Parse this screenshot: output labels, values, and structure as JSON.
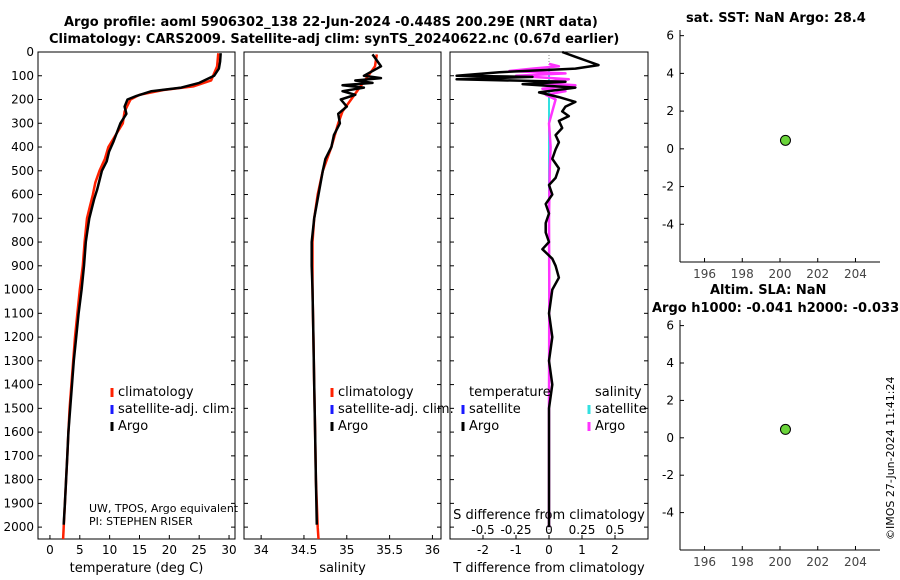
{
  "header": {
    "title_line1": "Argo profile: aoml 5906302_138 22-Jun-2024 -0.448S 200.29E (NRT data)",
    "title_line2": "Climatology: CARS2009. Satellite-adj clim: synTS_20240622.nc (0.67d earlier)",
    "sst_title": "sat. SST: NaN Argo: 28.4",
    "sla_title1": "Altim. SLA: NaN",
    "sla_title2": "Argo h1000: -0.041 h2000: -0.033",
    "stamp": "©IMOS 27-Jun-2024 11:41:24"
  },
  "colors": {
    "argo": "#000000",
    "climatology": "#ff2000",
    "satellite_adj": "#1a1aff",
    "s_satellite": "#33e0e0",
    "s_argo": "#ff33ff",
    "marker": "#6ad43a"
  },
  "info": {
    "line1": "UW, TPOS, Argo equivalent",
    "line2": "PI: STEPHEN RISER"
  },
  "legend": {
    "climatology": "climatology",
    "satellite_adj": "satellite-adj. clim.",
    "argo": "Argo"
  },
  "diff_legend": {
    "temperature": "temperature",
    "salinity": "salinity",
    "satellite": "satellite",
    "argo": "Argo"
  },
  "chart_data": [
    {
      "type": "line",
      "id": "temperature",
      "xlabel": "temperature (deg C)",
      "ylabel": "",
      "xlim": [
        -2,
        31
      ],
      "ylim": [
        0,
        2050
      ],
      "xticks": [
        0,
        5,
        10,
        15,
        20,
        25,
        30
      ],
      "yticks": [
        0,
        100,
        200,
        300,
        400,
        500,
        600,
        700,
        800,
        900,
        1000,
        1100,
        1200,
        1300,
        1400,
        1500,
        1600,
        1700,
        1800,
        1900,
        2000
      ],
      "series": [
        {
          "name": "climatology",
          "points": [
            [
              28.2,
              5
            ],
            [
              28.0,
              60
            ],
            [
              27.0,
              120
            ],
            [
              24,
              145
            ],
            [
              19,
              160
            ],
            [
              15,
              180
            ],
            [
              13.5,
              200
            ],
            [
              12.5,
              250
            ],
            [
              12.2,
              300
            ],
            [
              11,
              350
            ],
            [
              9.8,
              400
            ],
            [
              9.2,
              450
            ],
            [
              8.3,
              500
            ],
            [
              7.6,
              550
            ],
            [
              7.2,
              600
            ],
            [
              6.7,
              650
            ],
            [
              6.2,
              700
            ],
            [
              5.8,
              800
            ],
            [
              5.5,
              900
            ],
            [
              5.0,
              1000
            ],
            [
              4.6,
              1100
            ],
            [
              4.2,
              1200
            ],
            [
              3.9,
              1300
            ],
            [
              3.6,
              1400
            ],
            [
              3.3,
              1500
            ],
            [
              3.1,
              1600
            ],
            [
              2.9,
              1700
            ],
            [
              2.7,
              1800
            ],
            [
              2.5,
              1900
            ],
            [
              2.3,
              2000
            ],
            [
              2.2,
              2050
            ]
          ]
        },
        {
          "name": "Argo",
          "points": [
            [
              28.6,
              5
            ],
            [
              28.5,
              40
            ],
            [
              28.3,
              70
            ],
            [
              27.5,
              100
            ],
            [
              25,
              130
            ],
            [
              22,
              150
            ],
            [
              17,
              165
            ],
            [
              14.5,
              185
            ],
            [
              13,
              200
            ],
            [
              12.5,
              230
            ],
            [
              12.8,
              260
            ],
            [
              11.8,
              300
            ],
            [
              11.2,
              340
            ],
            [
              10.6,
              380
            ],
            [
              9.9,
              420
            ],
            [
              9.5,
              460
            ],
            [
              8.7,
              500
            ],
            [
              8.3,
              540
            ],
            [
              7.9,
              580
            ],
            [
              7.4,
              620
            ],
            [
              7.0,
              660
            ],
            [
              6.6,
              700
            ],
            [
              6.3,
              750
            ],
            [
              6.0,
              800
            ],
            [
              5.7,
              900
            ],
            [
              5.3,
              1000
            ],
            [
              4.8,
              1100
            ],
            [
              4.4,
              1200
            ],
            [
              4.0,
              1300
            ],
            [
              3.7,
              1400
            ],
            [
              3.4,
              1500
            ],
            [
              3.1,
              1600
            ],
            [
              2.9,
              1700
            ],
            [
              2.7,
              1800
            ],
            [
              2.5,
              1900
            ],
            [
              2.3,
              1990
            ]
          ]
        }
      ]
    },
    {
      "type": "line",
      "id": "salinity",
      "xlabel": "salinity",
      "ylabel": "",
      "xlim": [
        33.8,
        36.1
      ],
      "ylim": [
        0,
        2050
      ],
      "xticks": [
        34,
        34.5,
        35,
        35.5,
        36
      ],
      "series": [
        {
          "name": "climatology",
          "points": [
            [
              35.35,
              10
            ],
            [
              35.33,
              60
            ],
            [
              35.25,
              100
            ],
            [
              35.15,
              150
            ],
            [
              35.05,
              200
            ],
            [
              34.95,
              250
            ],
            [
              34.9,
              300
            ],
            [
              34.82,
              400
            ],
            [
              34.72,
              500
            ],
            [
              34.66,
              600
            ],
            [
              34.62,
              700
            ],
            [
              34.6,
              800
            ],
            [
              34.6,
              900
            ],
            [
              34.6,
              1000
            ],
            [
              34.61,
              1200
            ],
            [
              34.62,
              1400
            ],
            [
              34.63,
              1600
            ],
            [
              34.64,
              1800
            ],
            [
              34.66,
              2000
            ],
            [
              34.67,
              2050
            ]
          ]
        },
        {
          "name": "Argo",
          "points": [
            [
              35.3,
              10
            ],
            [
              35.4,
              60
            ],
            [
              35.2,
              100
            ],
            [
              35.4,
              110
            ],
            [
              35.1,
              120
            ],
            [
              35.3,
              130
            ],
            [
              34.95,
              140
            ],
            [
              35.2,
              150
            ],
            [
              34.95,
              165
            ],
            [
              35.1,
              180
            ],
            [
              34.93,
              200
            ],
            [
              35.0,
              230
            ],
            [
              34.9,
              260
            ],
            [
              34.92,
              300
            ],
            [
              34.85,
              350
            ],
            [
              34.82,
              400
            ],
            [
              34.75,
              450
            ],
            [
              34.72,
              500
            ],
            [
              34.67,
              600
            ],
            [
              34.62,
              700
            ],
            [
              34.59,
              800
            ],
            [
              34.59,
              900
            ],
            [
              34.6,
              1000
            ],
            [
              34.61,
              1200
            ],
            [
              34.62,
              1400
            ],
            [
              34.63,
              1600
            ],
            [
              34.64,
              1800
            ],
            [
              34.65,
              1990
            ]
          ]
        }
      ]
    },
    {
      "type": "line",
      "id": "difference",
      "xlabel": "T difference from climatology",
      "xlabel_top": "S difference from climatology",
      "xlim": [
        -3,
        3
      ],
      "ylim": [
        0,
        2050
      ],
      "xticks": [
        -2,
        -1,
        0,
        1,
        2
      ],
      "s_ticks": [
        {
          "label": "-0.5",
          "t": -2
        },
        {
          "label": "-0.25",
          "t": -1
        },
        {
          "label": "0",
          "t": 0
        },
        {
          "label": "0.25",
          "t": 1
        },
        {
          "label": "0.5",
          "t": 2
        }
      ],
      "series": [
        {
          "name": "T Argo",
          "points": [
            [
              0.4,
              0
            ],
            [
              0.8,
              20
            ],
            [
              1.2,
              40
            ],
            [
              1.5,
              55
            ],
            [
              0.8,
              70
            ],
            [
              -1.5,
              85
            ],
            [
              -2.8,
              100
            ],
            [
              -0.5,
              105
            ],
            [
              -2.8,
              115
            ],
            [
              0.5,
              125
            ],
            [
              -0.8,
              135
            ],
            [
              0.8,
              150
            ],
            [
              -0.3,
              170
            ],
            [
              0.3,
              190
            ],
            [
              0.8,
              210
            ],
            [
              0.5,
              230
            ],
            [
              0.4,
              250
            ],
            [
              0.6,
              270
            ],
            [
              0.3,
              290
            ],
            [
              0.4,
              320
            ],
            [
              0.2,
              350
            ],
            [
              0.3,
              380
            ],
            [
              0.2,
              410
            ],
            [
              0.1,
              450
            ],
            [
              0.3,
              490
            ],
            [
              0.2,
              530
            ],
            [
              0.0,
              560
            ],
            [
              0.1,
              600
            ],
            [
              -0.1,
              640
            ],
            [
              0.0,
              680
            ],
            [
              -0.1,
              720
            ],
            [
              -0.1,
              760
            ],
            [
              0.0,
              800
            ],
            [
              -0.2,
              830
            ],
            [
              0.1,
              870
            ],
            [
              0.2,
              900
            ],
            [
              0.3,
              950
            ],
            [
              0.1,
              1000
            ],
            [
              0.0,
              1100
            ],
            [
              0.1,
              1200
            ],
            [
              0.0,
              1300
            ],
            [
              0.1,
              1400
            ],
            [
              0.0,
              1500
            ],
            [
              0.0,
              1600
            ],
            [
              0.0,
              1800
            ],
            [
              0.0,
              2000
            ]
          ]
        },
        {
          "name": "S Argo",
          "points": [
            [
              0.0,
              50
            ],
            [
              0.3,
              60
            ],
            [
              -0.5,
              70
            ],
            [
              -1.2,
              80
            ],
            [
              0.5,
              90
            ],
            [
              -1.0,
              100
            ],
            [
              0.6,
              115
            ],
            [
              -0.3,
              130
            ],
            [
              0.8,
              140
            ],
            [
              -0.2,
              155
            ],
            [
              0.5,
              165
            ],
            [
              -0.1,
              180
            ],
            [
              0.2,
              200
            ],
            [
              0.1,
              250
            ],
            [
              0.0,
              300
            ],
            [
              0.05,
              400
            ],
            [
              0.02,
              500
            ],
            [
              0.0,
              700
            ],
            [
              0.01,
              1000
            ],
            [
              0.0,
              1500
            ],
            [
              0.0,
              2000
            ]
          ]
        }
      ]
    },
    {
      "type": "scatter",
      "id": "sst_panel",
      "title": "sat. SST: NaN Argo: 28.4",
      "xlim": [
        194.7,
        205.3
      ],
      "ylim": [
        -6,
        6.3
      ],
      "xticks": [
        196,
        198,
        200,
        202,
        204
      ],
      "yticks": [
        -4,
        -2,
        0,
        2,
        4,
        6
      ],
      "points": [
        [
          200.29,
          0.45
        ]
      ]
    },
    {
      "type": "scatter",
      "id": "sla_panel",
      "title": "Altim. SLA: NaN",
      "xlim": [
        194.7,
        205.3
      ],
      "ylim": [
        -6,
        6.3
      ],
      "xticks": [
        196,
        198,
        200,
        202,
        204
      ],
      "yticks": [
        -4,
        -2,
        0,
        2,
        4,
        6
      ],
      "points": [
        [
          200.29,
          0.45
        ]
      ]
    }
  ]
}
